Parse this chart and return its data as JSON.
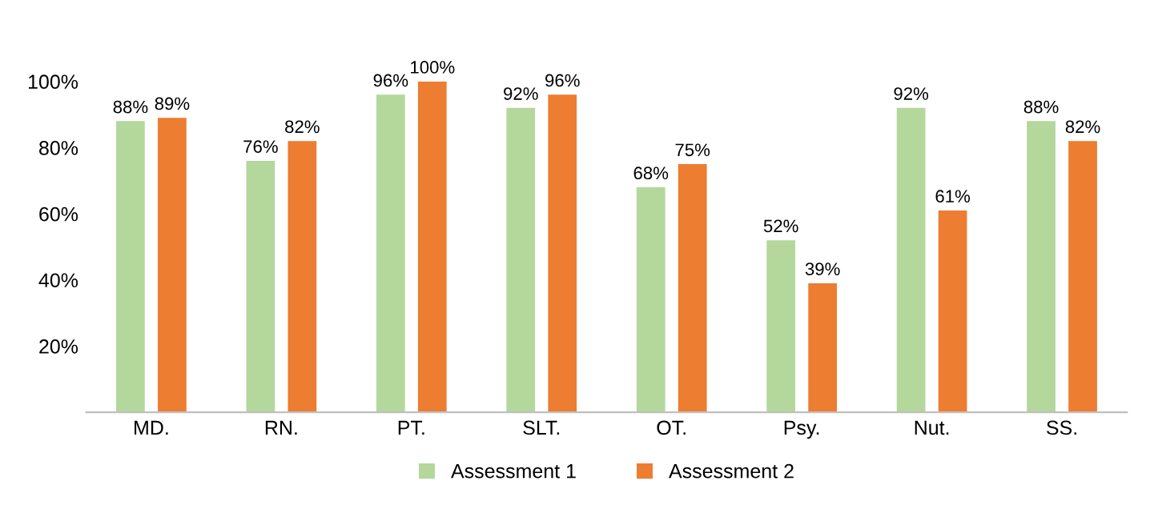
{
  "chart_data": {
    "type": "bar",
    "categories": [
      "MD.",
      "RN.",
      "PT.",
      "SLT.",
      "OT.",
      "Psy.",
      "Nut.",
      "SS."
    ],
    "series": [
      {
        "name": "Assessment 1",
        "color": "#b4d79c",
        "values": [
          88,
          76,
          96,
          92,
          68,
          52,
          92,
          88
        ],
        "value_labels": [
          "88%",
          "76%",
          "96%",
          "92%",
          "68%",
          "52%",
          "92%",
          "88%"
        ]
      },
      {
        "name": "Assessment 2",
        "color": "#ed7d31",
        "values": [
          89,
          82,
          100,
          96,
          75,
          39,
          61,
          82
        ],
        "value_labels": [
          "89%",
          "82%",
          "100%",
          "96%",
          "75%",
          "39%",
          "61%",
          "82%"
        ]
      }
    ],
    "ylim": [
      0,
      100
    ],
    "yticks": [
      {
        "value": 20,
        "label": "20%"
      },
      {
        "value": 40,
        "label": "40%"
      },
      {
        "value": 60,
        "label": "60%"
      },
      {
        "value": 80,
        "label": "80%"
      },
      {
        "value": 100,
        "label": "100%"
      }
    ],
    "grid": false,
    "legend": "bottom"
  }
}
